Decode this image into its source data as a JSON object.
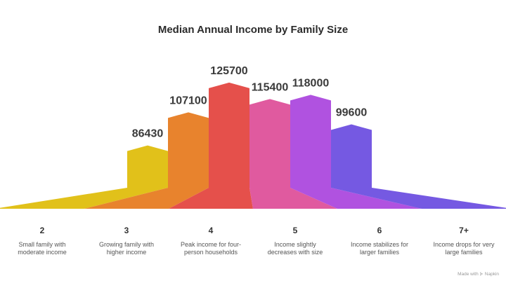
{
  "chart_data": {
    "type": "bar",
    "title": "Median Annual Income by Family Size",
    "xlabel": "",
    "ylabel": "",
    "categories": [
      "2",
      "3",
      "4",
      "5",
      "6",
      "7+"
    ],
    "values": [
      86430,
      107100,
      125700,
      115400,
      118000,
      99600
    ],
    "value_labels": [
      "86430",
      "107100",
      "125700",
      "115400",
      "118000",
      "99600"
    ],
    "descriptions": [
      [
        "Small family with",
        "moderate income"
      ],
      [
        "Growing family with",
        "higher income"
      ],
      [
        "Peak income for four-",
        "person households"
      ],
      [
        "Income slightly",
        "decreases with size"
      ],
      [
        "Income stabilizes for",
        "larger families"
      ],
      [
        "Income drops for very",
        "large families"
      ]
    ],
    "colors": [
      "#e1c11a",
      "#e8832d",
      "#e5504b",
      "#e05a9f",
      "#b052e0",
      "#7559e2"
    ],
    "ylim": [
      60000,
      130000
    ],
    "grid": false,
    "legend": "none"
  },
  "credit": "Made with ⊱ Napkin"
}
